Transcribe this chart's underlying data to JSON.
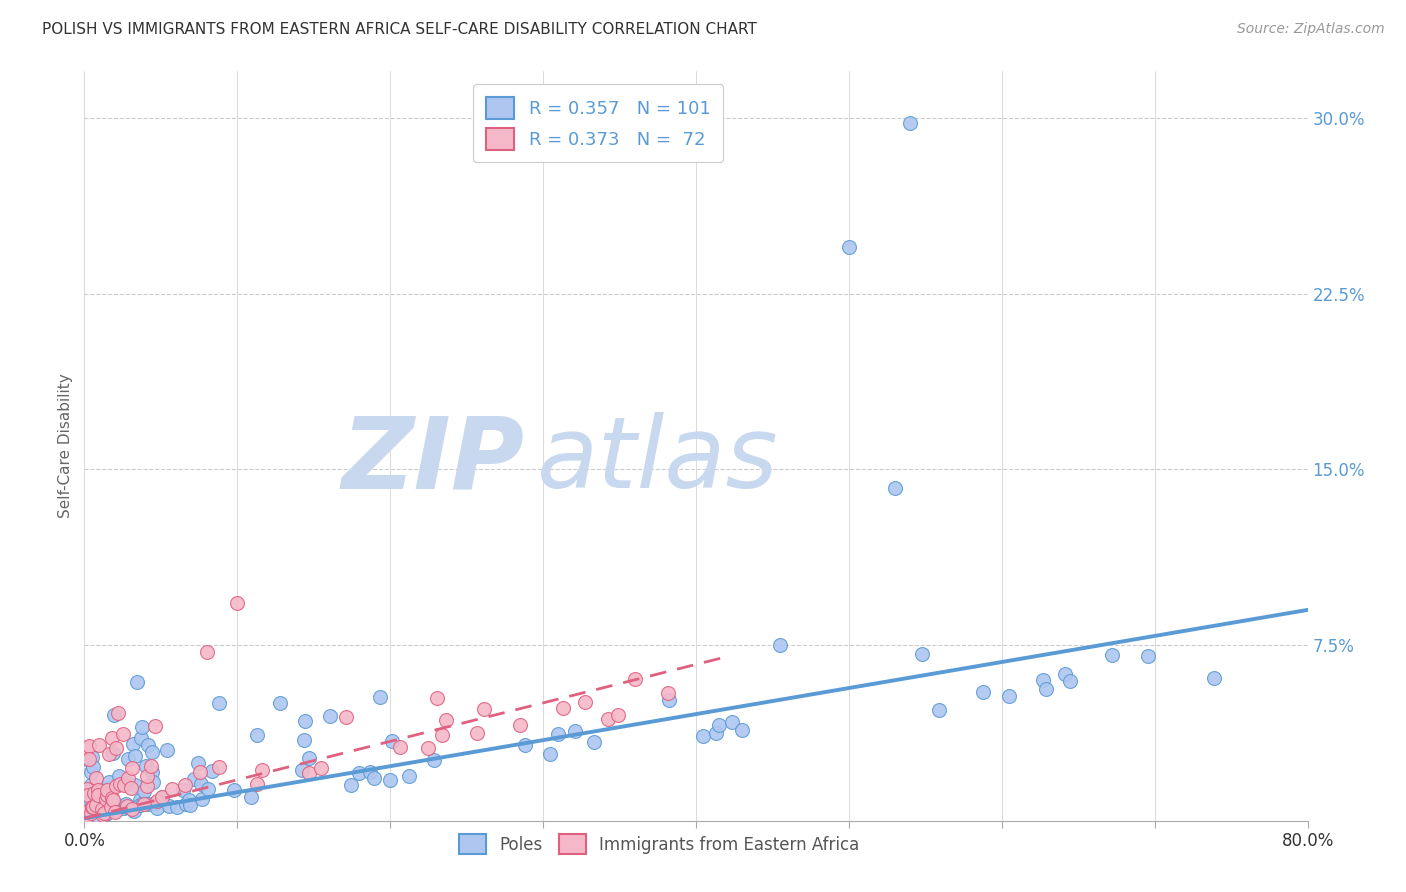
{
  "title": "POLISH VS IMMIGRANTS FROM EASTERN AFRICA SELF-CARE DISABILITY CORRELATION CHART",
  "source": "Source: ZipAtlas.com",
  "ylabel": "Self-Care Disability",
  "ytick_values": [
    0.0,
    0.075,
    0.15,
    0.225,
    0.3
  ],
  "xlim": [
    0.0,
    0.8
  ],
  "ylim": [
    0.0,
    0.32
  ],
  "legend_bottom_labels": [
    "Poles",
    "Immigrants from Eastern Africa"
  ],
  "poles_color_fill": "#aec6f0",
  "poles_color_edge": "#5a9bd5",
  "africa_color_fill": "#f4b8c8",
  "africa_color_edge": "#e06080",
  "poles_trend_x0": 0.0,
  "poles_trend_y0": 0.001,
  "poles_trend_x1": 0.8,
  "poles_trend_y1": 0.09,
  "africa_trend_x0": 0.0,
  "africa_trend_y0": 0.001,
  "africa_trend_x1": 0.42,
  "africa_trend_y1": 0.07,
  "watermark_zip": "ZIP",
  "watermark_atlas": "atlas",
  "watermark_color_zip": "#c8d8ee",
  "watermark_color_atlas": "#c8d8ee",
  "grid_color": "#cccccc",
  "background_color": "#ffffff",
  "title_fontsize": 11,
  "axis_label_color": "#5a9bd5",
  "source_color": "#999999",
  "legend_r_color": "#5a9bd5",
  "legend_n_color": "#e06080"
}
